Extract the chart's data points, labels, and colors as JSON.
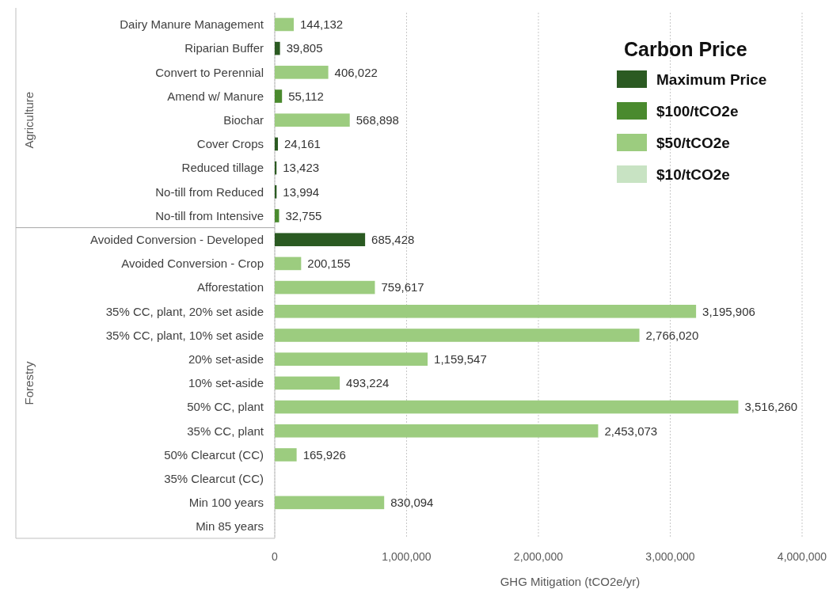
{
  "chart_data": {
    "type": "bar",
    "orientation": "horizontal",
    "stacked": true,
    "xlabel": "GHG Mitigation (tCO2e/yr)",
    "legend_title": "Carbon Price",
    "legend": "top right",
    "grid": "x",
    "categories": [
      "Dairy Manure Management",
      "Riparian Buffer",
      "Convert to Perennial",
      "Amend w/ Manure",
      "Biochar",
      "Cover Crops",
      "Reduced tillage",
      "No-till from Reduced",
      "No-till from Intensive",
      "Avoided Conversion - Developed",
      "Avoided Conversion - Crop",
      "Afforestation",
      "35% CC, plant, 20% set aside",
      "35% CC, plant, 10% set aside",
      "20% set-aside",
      "10% set-aside",
      "50% CC, plant",
      "35% CC, plant",
      "50% Clearcut (CC)",
      "35% Clearcut (CC)",
      "Min 100 years",
      "Min 85 years"
    ],
    "xlim": [
      0,
      4000000
    ],
    "xticks": [
      {
        "value": 0,
        "label": "0"
      },
      {
        "value": 1000000,
        "label": "1,000,000"
      },
      {
        "value": 2000000,
        "label": "2,000,000"
      },
      {
        "value": 3000000,
        "label": "3,000,000"
      },
      {
        "value": 4000000,
        "label": "4,000,000"
      }
    ],
    "series": [
      {
        "name": "Maximum Price",
        "color": "#2b5a22",
        "values": [
          null,
          39805,
          null,
          null,
          null,
          24161,
          13423,
          13994,
          null,
          685428,
          null,
          null,
          null,
          null,
          null,
          null,
          null,
          null,
          null,
          null,
          null,
          null
        ],
        "value_labels": [
          null,
          "39,805",
          null,
          null,
          null,
          "24,161",
          "13,423",
          "13,994",
          null,
          "685,428",
          null,
          null,
          null,
          null,
          null,
          null,
          null,
          null,
          null,
          null,
          null,
          null
        ]
      },
      {
        "name": "$100/tCO2e",
        "color": "#4a8a2e",
        "values": [
          null,
          null,
          null,
          55112,
          null,
          null,
          null,
          null,
          32755,
          null,
          null,
          null,
          null,
          null,
          null,
          null,
          null,
          null,
          null,
          null,
          null,
          null
        ],
        "value_labels": [
          null,
          null,
          null,
          "55,112",
          null,
          null,
          null,
          null,
          "32,755",
          null,
          null,
          null,
          null,
          null,
          null,
          null,
          null,
          null,
          null,
          null,
          null,
          null
        ]
      },
      {
        "name": "$50/tCO2e",
        "color": "#9ccc7f",
        "values": [
          144132,
          null,
          406022,
          null,
          568898,
          null,
          null,
          null,
          null,
          null,
          200155,
          759617,
          3195906,
          2766020,
          1159547,
          493224,
          3516260,
          2453073,
          165926,
          null,
          830094,
          null
        ],
        "value_labels": [
          "144,132",
          null,
          "406,022",
          null,
          "568,898",
          null,
          null,
          null,
          null,
          null,
          "200,155",
          "759,617",
          "3,195,906",
          "2,766,020",
          "1,159,547",
          "493,224",
          "3,516,260",
          "2,453,073",
          "165,926",
          null,
          "830,094",
          null
        ]
      },
      {
        "name": "$10/tCO2e",
        "color": "#c8e3c3",
        "values": [
          null,
          null,
          null,
          null,
          null,
          null,
          null,
          null,
          null,
          null,
          null,
          null,
          null,
          null,
          null,
          null,
          null,
          null,
          null,
          null,
          null,
          null
        ]
      }
    ],
    "annotations": [
      "Agriculture",
      "Forestry"
    ]
  }
}
